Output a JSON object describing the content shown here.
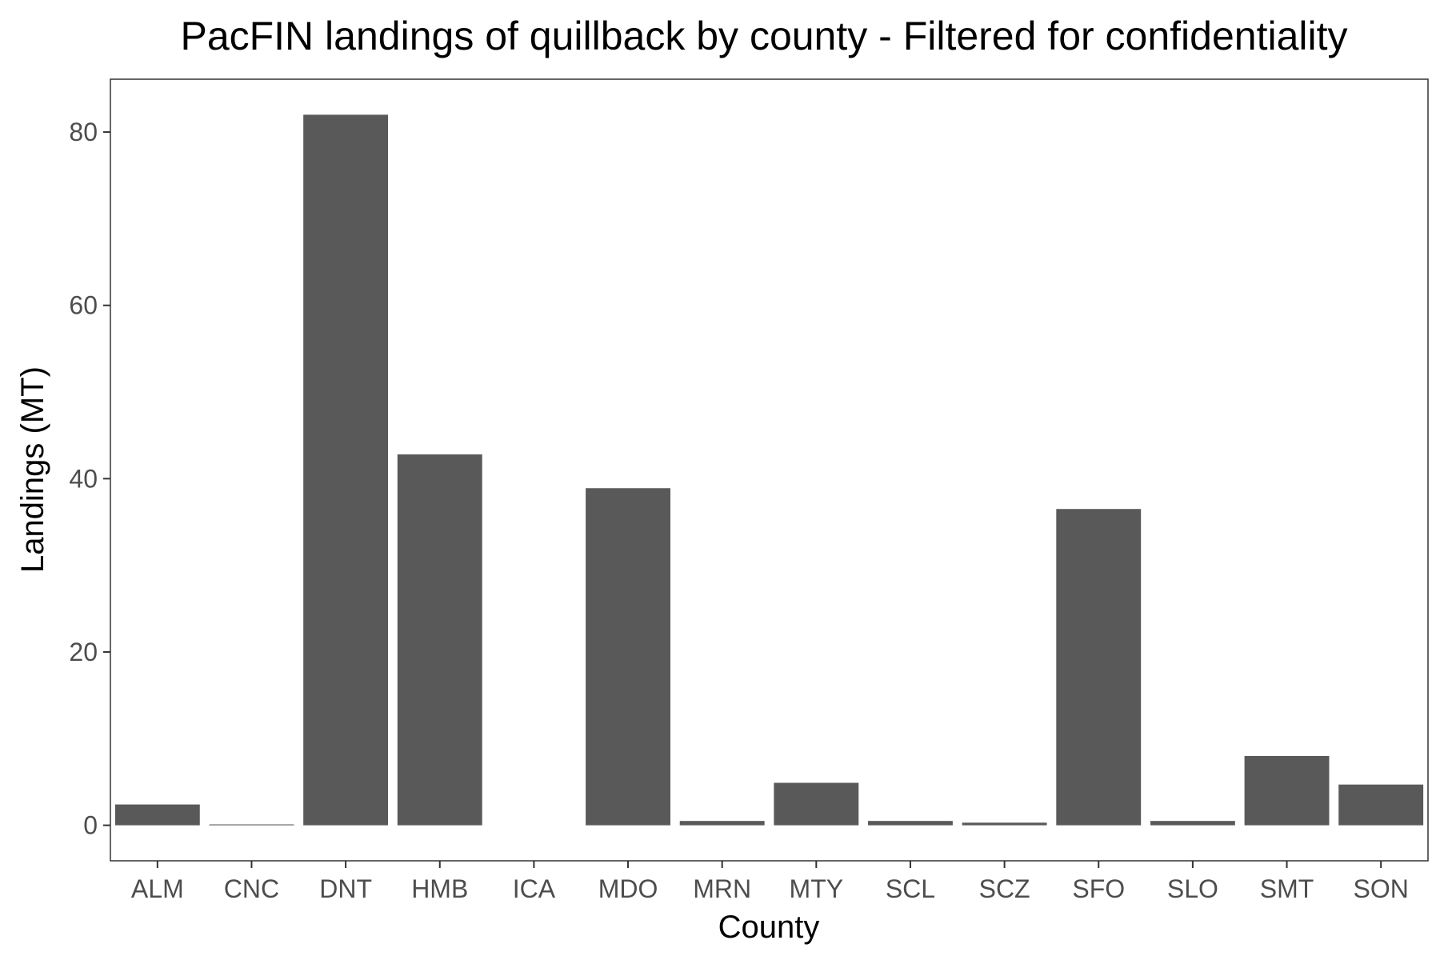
{
  "chart_data": {
    "type": "bar",
    "title": "PacFIN landings of quillback by county - Filtered for confidentiality",
    "xlabel": "County",
    "ylabel": "Landings (MT)",
    "categories": [
      "ALM",
      "CNC",
      "DNT",
      "HMB",
      "ICA",
      "MDO",
      "MRN",
      "MTY",
      "SCL",
      "SCZ",
      "SFO",
      "SLO",
      "SMT",
      "SON"
    ],
    "values": [
      2.4,
      0.1,
      82.0,
      42.8,
      0.0,
      38.9,
      0.5,
      4.9,
      0.5,
      0.3,
      36.5,
      0.5,
      8.0,
      4.7
    ],
    "yticks": [
      0,
      20,
      40,
      60,
      80
    ],
    "ylim": [
      -4.1,
      86.1
    ],
    "grid": false,
    "legend": "none",
    "bar_color": "#595959"
  }
}
